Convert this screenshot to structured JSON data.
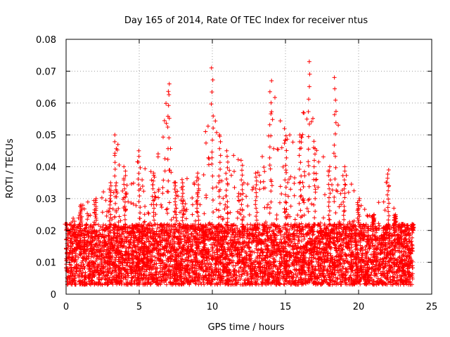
{
  "chart_data": {
    "type": "scatter",
    "title": "Day 165 of 2014, Rate Of TEC Index for receiver ntus",
    "xlabel": "GPS time / hours",
    "ylabel": "ROTI / TECUs",
    "xlim": [
      0,
      25
    ],
    "ylim": [
      0,
      0.08
    ],
    "xticks": [
      0,
      5,
      10,
      15,
      20,
      25
    ],
    "yticks": [
      0,
      0.01,
      0.02,
      0.03,
      0.04,
      0.05,
      0.06,
      0.07,
      0.08
    ],
    "xtick_labels": [
      "0",
      "5",
      "10",
      "15",
      "20",
      "25"
    ],
    "ytick_labels": [
      "0",
      "0.01",
      "0.02",
      "0.03",
      "0.04",
      "0.05",
      "0.06",
      "0.07",
      "0.08"
    ],
    "grid": true,
    "marker": "+",
    "color": "#ff0000",
    "series": [
      {
        "name": "ROTI",
        "x_range": [
          0,
          23.7
        ],
        "baseline_min": 0.003,
        "baseline_max": 0.022,
        "envelope": {
          "x": [
            0,
            1,
            2,
            3,
            3.4,
            4,
            5,
            6,
            7,
            7.5,
            8,
            9,
            10,
            10.5,
            11,
            12,
            13,
            14,
            15,
            16,
            16.6,
            17,
            18,
            18.4,
            19,
            20,
            21,
            22,
            22.5,
            23,
            23.7
          ],
          "y": [
            0.022,
            0.028,
            0.03,
            0.035,
            0.05,
            0.04,
            0.045,
            0.038,
            0.066,
            0.035,
            0.036,
            0.038,
            0.071,
            0.05,
            0.045,
            0.042,
            0.038,
            0.067,
            0.052,
            0.05,
            0.073,
            0.048,
            0.04,
            0.068,
            0.04,
            0.03,
            0.025,
            0.039,
            0.025,
            0.022,
            0.02
          ]
        },
        "point_count": 6000
      }
    ]
  }
}
